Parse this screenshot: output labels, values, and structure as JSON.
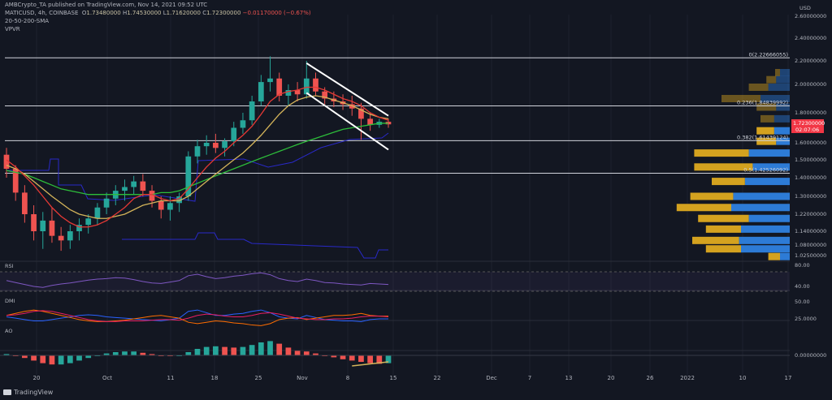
{
  "header": {
    "attribution": "AMBCrypto_TA published on TradingView.com, Nov 14, 2021 09:52 UTC",
    "symbol": "MATICUSD, 4h, COINBASE",
    "open_label": "O",
    "open": "1.73480000",
    "high_label": "H",
    "high": "1.74530000",
    "low_label": "L",
    "low": "1.71620000",
    "close_label": "C",
    "close": "1.72300000",
    "change": "−0.01170000 (−0.67%)",
    "indicator_sma": "20-50-200-SMA",
    "indicator_vpvr": "VPVR"
  },
  "footer": {
    "brand": "TradingView"
  },
  "colors": {
    "background": "#131722",
    "candle_up": "#26a69a",
    "candle_down": "#ef5350",
    "sma20": "#e53935",
    "sma50": "#d4b45a",
    "sma200": "#2dbd3a",
    "overlay_blue": "#2929c8",
    "vpvr_up": "#d4a21f",
    "vpvr_down": "#2d7bd6",
    "rsi": "#7e57c2",
    "price_tag": "#f23645"
  },
  "chart_data": {
    "type": "candlestick",
    "price_axis": {
      "labels": [
        "2.60000000",
        "2.40000000",
        "2.20000000",
        "2.00000000",
        "1.80000000",
        "1.60000000",
        "1.50000000",
        "1.40000000",
        "1.30000000",
        "1.22000000",
        "1.14000000",
        "1.08000000",
        "1.02500000"
      ],
      "currency": "USD"
    },
    "time_axis": {
      "labels": [
        "20",
        "Oct",
        "11",
        "18",
        "25",
        "Nov",
        "8",
        "15",
        "22",
        "Dec",
        "7",
        "13",
        "20",
        "26",
        "2022",
        "10",
        "17"
      ]
    },
    "fib_levels": [
      {
        "label": "0(2.22666055)",
        "price": 2.22666055
      },
      {
        "label": "0.236(1.84839992)",
        "price": 1.84839992
      },
      {
        "label": "0.382(1.61439124)",
        "price": 1.61439124
      },
      {
        "label": "0.5(1.42526092)",
        "price": 1.42526092
      }
    ],
    "last_price": {
      "value": "1.72300000",
      "countdown": "02:07:06"
    },
    "ohlc": [
      [
        1.53,
        1.57,
        1.4,
        1.45
      ],
      [
        1.45,
        1.47,
        1.28,
        1.32
      ],
      [
        1.32,
        1.36,
        1.18,
        1.22
      ],
      [
        1.22,
        1.26,
        1.1,
        1.14
      ],
      [
        1.14,
        1.23,
        1.06,
        1.19
      ],
      [
        1.19,
        1.25,
        1.09,
        1.12
      ],
      [
        1.12,
        1.16,
        1.05,
        1.1
      ],
      [
        1.1,
        1.17,
        1.06,
        1.14
      ],
      [
        1.14,
        1.2,
        1.1,
        1.17
      ],
      [
        1.17,
        1.22,
        1.13,
        1.2
      ],
      [
        1.2,
        1.27,
        1.17,
        1.25
      ],
      [
        1.25,
        1.32,
        1.22,
        1.29
      ],
      [
        1.29,
        1.36,
        1.26,
        1.33
      ],
      [
        1.33,
        1.39,
        1.28,
        1.35
      ],
      [
        1.35,
        1.41,
        1.31,
        1.38
      ],
      [
        1.38,
        1.42,
        1.3,
        1.33
      ],
      [
        1.33,
        1.36,
        1.25,
        1.28
      ],
      [
        1.28,
        1.3,
        1.2,
        1.24
      ],
      [
        1.24,
        1.3,
        1.19,
        1.27
      ],
      [
        1.27,
        1.32,
        1.23,
        1.3
      ],
      [
        1.3,
        1.55,
        1.28,
        1.52
      ],
      [
        1.52,
        1.62,
        1.48,
        1.58
      ],
      [
        1.58,
        1.65,
        1.53,
        1.6
      ],
      [
        1.6,
        1.66,
        1.54,
        1.57
      ],
      [
        1.57,
        1.63,
        1.52,
        1.61
      ],
      [
        1.61,
        1.74,
        1.58,
        1.7
      ],
      [
        1.7,
        1.8,
        1.66,
        1.75
      ],
      [
        1.75,
        1.92,
        1.72,
        1.88
      ],
      [
        1.88,
        2.08,
        1.85,
        2.02
      ],
      [
        2.02,
        2.24,
        1.95,
        2.05
      ],
      [
        2.05,
        2.1,
        1.88,
        1.92
      ],
      [
        1.92,
        2.0,
        1.85,
        1.96
      ],
      [
        1.96,
        2.02,
        1.88,
        1.93
      ],
      [
        1.93,
        2.2,
        1.9,
        2.05
      ],
      [
        2.05,
        2.1,
        1.92,
        1.95
      ],
      [
        1.95,
        1.98,
        1.86,
        1.9
      ],
      [
        1.9,
        1.95,
        1.84,
        1.88
      ],
      [
        1.88,
        1.93,
        1.82,
        1.86
      ],
      [
        1.86,
        1.92,
        1.78,
        1.83
      ],
      [
        1.83,
        1.87,
        1.62,
        1.76
      ],
      [
        1.76,
        1.8,
        1.68,
        1.72
      ],
      [
        1.72,
        1.76,
        1.7,
        1.74
      ],
      [
        1.74,
        1.76,
        1.7,
        1.723
      ]
    ],
    "sma20": [
      1.5,
      1.46,
      1.41,
      1.36,
      1.3,
      1.25,
      1.21,
      1.18,
      1.16,
      1.16,
      1.17,
      1.19,
      1.22,
      1.25,
      1.29,
      1.31,
      1.31,
      1.29,
      1.28,
      1.29,
      1.34,
      1.4,
      1.46,
      1.51,
      1.55,
      1.6,
      1.65,
      1.71,
      1.79,
      1.88,
      1.93,
      1.95,
      1.96,
      1.98,
      1.98,
      1.96,
      1.93,
      1.9,
      1.88,
      1.85,
      1.8,
      1.77,
      1.75
    ],
    "sma50": [
      1.47,
      1.45,
      1.42,
      1.38,
      1.34,
      1.3,
      1.27,
      1.24,
      1.22,
      1.21,
      1.2,
      1.2,
      1.21,
      1.22,
      1.24,
      1.26,
      1.27,
      1.28,
      1.28,
      1.28,
      1.3,
      1.34,
      1.38,
      1.42,
      1.46,
      1.5,
      1.54,
      1.59,
      1.65,
      1.72,
      1.79,
      1.85,
      1.89,
      1.91,
      1.92,
      1.91,
      1.89,
      1.87,
      1.85,
      1.82,
      1.79,
      1.77,
      1.76
    ],
    "sma200": [
      1.44,
      1.43,
      1.42,
      1.4,
      1.38,
      1.36,
      1.34,
      1.33,
      1.32,
      1.31,
      1.31,
      1.31,
      1.31,
      1.31,
      1.31,
      1.31,
      1.31,
      1.32,
      1.32,
      1.33,
      1.35,
      1.37,
      1.39,
      1.41,
      1.43,
      1.45,
      1.47,
      1.49,
      1.51,
      1.53,
      1.55,
      1.57,
      1.59,
      1.61,
      1.63,
      1.65,
      1.67,
      1.69,
      1.7,
      1.71,
      1.72,
      1.73,
      1.73
    ],
    "channel": {
      "upper": [
        [
          1.93,
          2.18
        ],
        [
          1.73,
          1.78
        ]
      ],
      "lower": [
        [
          1.93,
          1.94
        ],
        [
          1.73,
          1.56
        ]
      ]
    },
    "vpvr": [
      {
        "price": 2.1,
        "up": 0.05,
        "down": 0.1
      },
      {
        "price": 2.04,
        "up": 0.1,
        "down": 0.14
      },
      {
        "price": 1.98,
        "up": 0.2,
        "down": 0.22
      },
      {
        "price": 1.9,
        "up": 0.4,
        "down": 0.3
      },
      {
        "price": 1.84,
        "up": 0.2,
        "down": 0.14
      },
      {
        "price": 1.76,
        "up": 0.14,
        "down": 0.16
      },
      {
        "price": 1.68,
        "up": 0.18,
        "down": 0.16
      },
      {
        "price": 1.61,
        "up": 0.2,
        "down": 0.14
      },
      {
        "price": 1.54,
        "up": 0.56,
        "down": 0.42
      },
      {
        "price": 1.46,
        "up": 0.6,
        "down": 0.38
      },
      {
        "price": 1.38,
        "up": 0.34,
        "down": 0.46
      },
      {
        "price": 1.3,
        "up": 0.44,
        "down": 0.58
      },
      {
        "price": 1.25,
        "up": 0.56,
        "down": 0.6
      },
      {
        "price": 1.2,
        "up": 0.52,
        "down": 0.42
      },
      {
        "price": 1.15,
        "up": 0.36,
        "down": 0.5
      },
      {
        "price": 1.1,
        "up": 0.48,
        "down": 0.52
      },
      {
        "price": 1.06,
        "up": 0.36,
        "down": 0.5
      },
      {
        "price": 1.02,
        "up": 0.12,
        "down": 0.1
      }
    ],
    "rsi": {
      "axis_labels": [
        "80.00",
        "40.00"
      ],
      "values": [
        52,
        48,
        44,
        40,
        38,
        42,
        45,
        47,
        50,
        53,
        55,
        56,
        58,
        57,
        54,
        50,
        47,
        46,
        49,
        52,
        62,
        65,
        60,
        56,
        58,
        61,
        63,
        66,
        68,
        64,
        56,
        52,
        50,
        55,
        52,
        48,
        47,
        45,
        44,
        43,
        46,
        45,
        44
      ]
    },
    "dmi": {
      "axis_labels": [
        "50.00",
        "25.0000"
      ],
      "plus": [
        28,
        26,
        24,
        22,
        22,
        24,
        26,
        28,
        30,
        31,
        30,
        28,
        27,
        26,
        25,
        24,
        23,
        22,
        24,
        26,
        36,
        38,
        34,
        30,
        30,
        32,
        33,
        36,
        38,
        34,
        28,
        26,
        25,
        30,
        27,
        24,
        23,
        22,
        22,
        21,
        24,
        25,
        25
      ],
      "minus": [
        30,
        33,
        36,
        38,
        36,
        33,
        30,
        27,
        24,
        22,
        21,
        21,
        22,
        23,
        25,
        27,
        29,
        30,
        28,
        26,
        20,
        18,
        20,
        22,
        21,
        19,
        18,
        16,
        15,
        18,
        24,
        26,
        27,
        24,
        26,
        28,
        30,
        30,
        31,
        33,
        30,
        29,
        29
      ],
      "adx": [
        30,
        31,
        33,
        36,
        37,
        36,
        33,
        30,
        27,
        24,
        22,
        21,
        21,
        22,
        22,
        22,
        23,
        24,
        24,
        23,
        26,
        30,
        32,
        31,
        29,
        28,
        28,
        30,
        33,
        34,
        32,
        29,
        26,
        25,
        24,
        24,
        25,
        25,
        26,
        28,
        29,
        29,
        28
      ]
    },
    "ao": {
      "axis_labels": [
        "0.00000000"
      ],
      "values": [
        0.02,
        0.0,
        -0.04,
        -0.08,
        -0.12,
        -0.14,
        -0.14,
        -0.12,
        -0.08,
        -0.04,
        0.0,
        0.03,
        0.05,
        0.06,
        0.06,
        0.04,
        0.02,
        0.0,
        -0.01,
        0.0,
        0.05,
        0.1,
        0.13,
        0.14,
        0.13,
        0.12,
        0.13,
        0.16,
        0.2,
        0.22,
        0.18,
        0.12,
        0.07,
        0.06,
        0.03,
        0.0,
        -0.03,
        -0.06,
        -0.08,
        -0.1,
        -0.12,
        -0.13,
        -0.12
      ]
    }
  }
}
